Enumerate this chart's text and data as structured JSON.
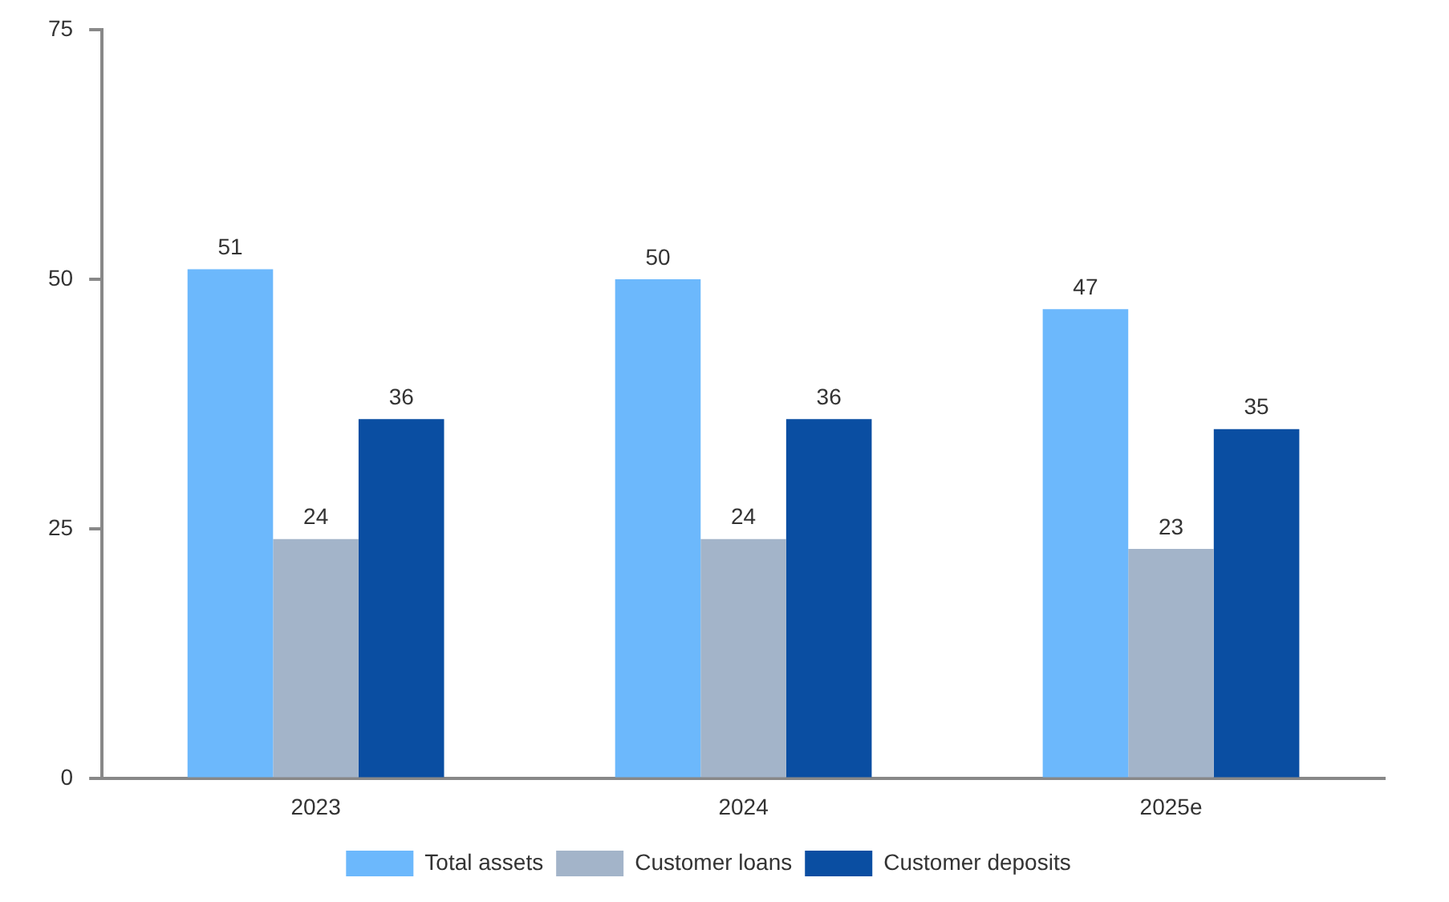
{
  "chart_data": {
    "type": "bar",
    "categories": [
      "2023",
      "2024",
      "2025e"
    ],
    "series": [
      {
        "name": "Total assets",
        "color": "#6cb8fc",
        "values": [
          51,
          50,
          47
        ]
      },
      {
        "name": "Customer loans",
        "color": "#a3b4c9",
        "values": [
          24,
          24,
          23
        ]
      },
      {
        "name": "Customer deposits",
        "color": "#0a4ea2",
        "values": [
          36,
          36,
          35
        ]
      }
    ],
    "ylim": [
      0,
      75
    ],
    "yticks": [
      0,
      25,
      50,
      75
    ],
    "grid": false,
    "legend": "bottom",
    "data_labels": true
  }
}
